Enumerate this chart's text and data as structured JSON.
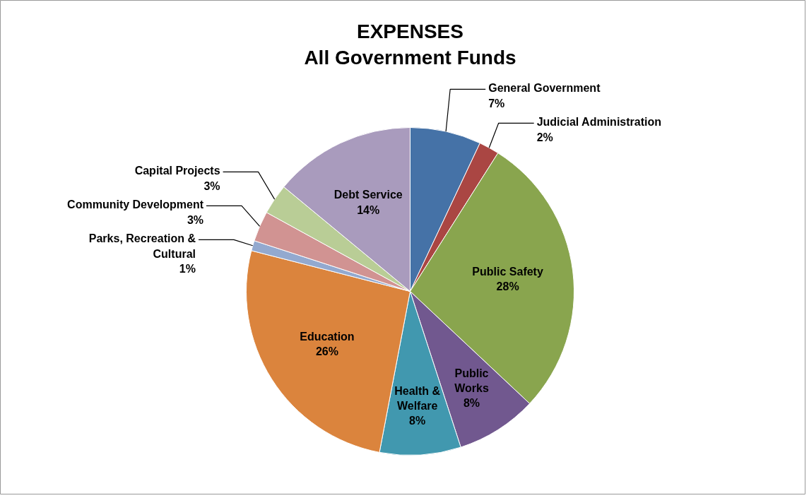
{
  "chart_data": {
    "type": "pie",
    "title": "EXPENSES\nAll Government Funds",
    "categories": [
      "General Government",
      "Judicial Administration",
      "Public Safety",
      "Public Works",
      "Health & Welfare",
      "Education",
      "Parks, Recreation & Cultural",
      "Community Development",
      "Capital Projects",
      "Debt Service"
    ],
    "values": [
      7,
      2,
      28,
      8,
      8,
      26,
      1,
      3,
      3,
      14
    ],
    "value_labels": [
      "7%",
      "2%",
      "28%",
      "8%",
      "8%",
      "26%",
      "1%",
      "3%",
      "3%",
      "14%"
    ],
    "colors": [
      "#4572a7",
      "#aa4643",
      "#89a54e",
      "#71588f",
      "#4198af",
      "#db843d",
      "#93a9cf",
      "#d19392",
      "#b9cd96",
      "#a99bbd"
    ]
  }
}
